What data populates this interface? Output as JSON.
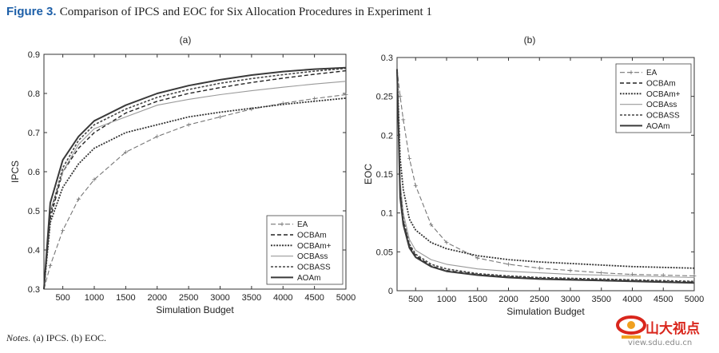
{
  "figure": {
    "label": "Figure 3.",
    "title": "Comparison of IPCS and EOC for Six Allocation Procedures in Experiment 1",
    "notes_label": "Notes.",
    "notes_text": "(a) IPCS. (b) EOC."
  },
  "watermark": {
    "logo_text": "山大视点",
    "url": "view.sdu.edu.cn",
    "logo_icon": "eye-logo-icon"
  },
  "chart_data": [
    {
      "type": "line",
      "title": "(a)",
      "xlabel": "Simulation Budget",
      "ylabel": "IPCS",
      "xlim": [
        200,
        5000
      ],
      "ylim": [
        0.3,
        0.9
      ],
      "xticks": [
        500,
        1000,
        1500,
        2000,
        2500,
        3000,
        3500,
        4000,
        4500,
        5000
      ],
      "yticks": [
        0.3,
        0.4,
        0.5,
        0.6,
        0.7,
        0.8,
        0.9
      ],
      "ytick_labels": [
        "0.3",
        "0.4",
        "0.5",
        "0.6",
        "0.7",
        "0.8",
        "0.9"
      ],
      "legend_position": "bottom-right",
      "grid": false,
      "x": [
        200,
        300,
        500,
        750,
        1000,
        1500,
        2000,
        2500,
        3000,
        3500,
        4000,
        4500,
        5000
      ],
      "series": [
        {
          "name": "EA",
          "style": "ea",
          "values": [
            0.3,
            0.36,
            0.45,
            0.53,
            0.58,
            0.65,
            0.69,
            0.72,
            0.74,
            0.76,
            0.775,
            0.787,
            0.797
          ]
        },
        {
          "name": "OCBAm",
          "style": "ocbam",
          "values": [
            0.3,
            0.48,
            0.6,
            0.66,
            0.7,
            0.75,
            0.78,
            0.8,
            0.815,
            0.828,
            0.839,
            0.849,
            0.858
          ]
        },
        {
          "name": "OCBAm+",
          "style": "ocbamplus",
          "values": [
            0.3,
            0.47,
            0.56,
            0.62,
            0.66,
            0.7,
            0.72,
            0.74,
            0.752,
            0.762,
            0.772,
            0.78,
            0.788
          ]
        },
        {
          "name": "OCBAss",
          "style": "ocbass",
          "values": [
            0.3,
            0.5,
            0.6,
            0.67,
            0.71,
            0.74,
            0.77,
            0.785,
            0.797,
            0.807,
            0.816,
            0.824,
            0.831
          ]
        },
        {
          "name": "OCBASS",
          "style": "ocbass2",
          "values": [
            0.3,
            0.49,
            0.61,
            0.68,
            0.72,
            0.76,
            0.79,
            0.81,
            0.826,
            0.838,
            0.848,
            0.857,
            0.864
          ]
        },
        {
          "name": "AOAm",
          "style": "aoam",
          "values": [
            0.3,
            0.52,
            0.63,
            0.69,
            0.73,
            0.77,
            0.8,
            0.82,
            0.835,
            0.847,
            0.856,
            0.862,
            0.866
          ]
        }
      ]
    },
    {
      "type": "line",
      "title": "(b)",
      "xlabel": "Simulation Budget",
      "ylabel": "EOC",
      "xlim": [
        200,
        5000
      ],
      "ylim": [
        0,
        0.3
      ],
      "xticks": [
        500,
        1000,
        1500,
        2000,
        2500,
        3000,
        3500,
        4000,
        4500,
        5000
      ],
      "yticks": [
        0,
        0.05,
        0.1,
        0.15,
        0.2,
        0.25,
        0.3
      ],
      "ytick_labels": [
        "0",
        "0.05",
        "0.1",
        "0.15",
        "0.2",
        "0.25",
        "0.3"
      ],
      "legend_position": "top-right",
      "grid": false,
      "x": [
        200,
        250,
        300,
        400,
        500,
        750,
        1000,
        1500,
        2000,
        2500,
        3000,
        3500,
        4000,
        4500,
        5000
      ],
      "series": [
        {
          "name": "EA",
          "style": "ea",
          "values": [
            0.285,
            0.25,
            0.22,
            0.17,
            0.135,
            0.085,
            0.062,
            0.042,
            0.034,
            0.029,
            0.026,
            0.023,
            0.021,
            0.02,
            0.019
          ]
        },
        {
          "name": "OCBAm",
          "style": "ocbam",
          "values": [
            0.285,
            0.13,
            0.09,
            0.058,
            0.045,
            0.032,
            0.026,
            0.021,
            0.018,
            0.016,
            0.015,
            0.014,
            0.013,
            0.012,
            0.011
          ]
        },
        {
          "name": "OCBAm+",
          "style": "ocbamplus",
          "values": [
            0.285,
            0.17,
            0.13,
            0.092,
            0.078,
            0.062,
            0.054,
            0.045,
            0.04,
            0.037,
            0.035,
            0.033,
            0.031,
            0.03,
            0.029
          ]
        },
        {
          "name": "OCBAss",
          "style": "ocbass",
          "values": [
            0.285,
            0.14,
            0.1,
            0.066,
            0.052,
            0.04,
            0.034,
            0.028,
            0.025,
            0.023,
            0.021,
            0.02,
            0.019,
            0.018,
            0.017
          ]
        },
        {
          "name": "OCBASS",
          "style": "ocbass2",
          "values": [
            0.285,
            0.13,
            0.092,
            0.06,
            0.047,
            0.034,
            0.028,
            0.022,
            0.019,
            0.017,
            0.016,
            0.015,
            0.014,
            0.013,
            0.012
          ]
        },
        {
          "name": "AOAm",
          "style": "aoam",
          "values": [
            0.285,
            0.12,
            0.085,
            0.055,
            0.043,
            0.031,
            0.025,
            0.02,
            0.017,
            0.015,
            0.014,
            0.013,
            0.012,
            0.011,
            0.01
          ]
        }
      ]
    }
  ]
}
